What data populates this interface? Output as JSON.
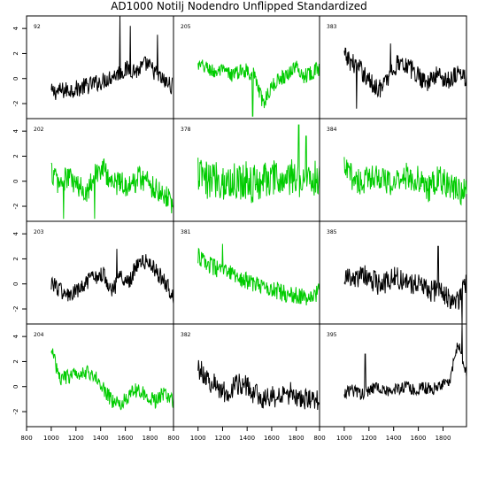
{
  "chart_data": {
    "type": "line",
    "title": "AD1000 Notilj Nodendro Unflipped Standardized",
    "x_ticks": [
      "800",
      "1000",
      "1200",
      "1400",
      "1600",
      "1800"
    ],
    "y_ticks": [
      "-2",
      "0",
      "2",
      "4"
    ],
    "xlim": [
      800,
      1990
    ],
    "ylim": [
      -3.2,
      5.0
    ],
    "colors": {
      "black": "#000000",
      "green": "#00cc00"
    },
    "panels": [
      {
        "label": "92",
        "color": "black",
        "start": 1000,
        "end": 1980,
        "base": [
          -1.1,
          -1.0,
          -0.9,
          -0.8,
          -0.6,
          -0.4,
          -0.2,
          0.2,
          0.5,
          0.8,
          0.6,
          1.2,
          0.5,
          -0.2,
          -0.6
        ],
        "noise": 0.7,
        "spikes": [
          [
            1555,
            5.0
          ],
          [
            1640,
            4.2
          ],
          [
            1860,
            3.5
          ]
        ]
      },
      {
        "label": "205",
        "color": "green",
        "start": 1000,
        "end": 1990,
        "base": [
          1.0,
          0.9,
          0.5,
          0.6,
          0.3,
          0.5,
          0.7,
          0.2,
          -2.0,
          -0.8,
          0.0,
          0.3,
          1.0,
          0.2,
          0.5,
          0.8
        ],
        "noise": 0.6,
        "spikes": [
          [
            1445,
            -3.0
          ]
        ]
      },
      {
        "label": "383",
        "color": "black",
        "start": 1000,
        "end": 1990,
        "base": [
          1.8,
          1.2,
          0.5,
          -0.5,
          -0.8,
          0.5,
          1.5,
          0.8,
          0.2,
          -0.3,
          0.4,
          -0.2,
          0.5,
          0.0
        ],
        "noise": 0.8,
        "spikes": [
          [
            1375,
            2.8
          ],
          [
            1100,
            -2.4
          ]
        ]
      },
      {
        "label": "202",
        "color": "green",
        "start": 1000,
        "end": 1990,
        "base": [
          0.8,
          -0.3,
          0.4,
          -0.5,
          -0.8,
          0.6,
          1.0,
          -0.2,
          0.0,
          -0.5,
          0.4,
          0.0,
          -0.6,
          -1.0,
          -1.8
        ],
        "noise": 1.0,
        "spikes": [
          [
            1100,
            -3.0
          ],
          [
            1350,
            -3.0
          ]
        ]
      },
      {
        "label": "378",
        "color": "green",
        "start": 1000,
        "end": 1990,
        "base": [
          0.6,
          -0.1,
          0.3,
          -0.2,
          0.0,
          0.2,
          -0.3,
          0.3,
          0.1,
          0.0,
          0.2,
          0.1,
          0.3,
          0.0
        ],
        "noise": 1.6,
        "spikes": [
          [
            1820,
            4.5
          ],
          [
            1880,
            3.6
          ]
        ]
      },
      {
        "label": "384",
        "color": "green",
        "start": 1000,
        "end": 1990,
        "base": [
          0.9,
          0.3,
          -0.2,
          0.6,
          0.2,
          -0.4,
          0.5,
          0.3,
          0.1,
          -0.6,
          0.2,
          -0.3,
          -0.6,
          -1.0
        ],
        "noise": 1.1,
        "spikes": []
      },
      {
        "label": "203",
        "color": "black",
        "start": 1000,
        "end": 1990,
        "base": [
          0.2,
          -0.5,
          -1.0,
          -0.6,
          0.0,
          0.6,
          0.8,
          -0.5,
          0.6,
          0.3,
          1.8,
          1.7,
          1.0,
          0.3,
          -1.0
        ],
        "noise": 0.7,
        "spikes": [
          [
            1530,
            2.8
          ]
        ]
      },
      {
        "label": "381",
        "color": "green",
        "start": 1000,
        "end": 1990,
        "base": [
          2.2,
          1.6,
          1.2,
          0.9,
          0.7,
          0.3,
          0.0,
          -0.2,
          -0.4,
          -0.7,
          -0.9,
          -1.0,
          -1.3,
          -0.5
        ],
        "noise": 0.7,
        "spikes": [
          [
            1200,
            3.2
          ]
        ]
      },
      {
        "label": "385",
        "color": "black",
        "start": 1000,
        "end": 1990,
        "base": [
          0.6,
          0.2,
          0.7,
          0.3,
          -0.2,
          0.5,
          0.4,
          0.0,
          0.2,
          -0.6,
          -0.5,
          -1.0,
          -1.5,
          0.2
        ],
        "noise": 0.9,
        "spikes": [
          [
            1760,
            3.0
          ],
          [
            1955,
            -3.2
          ]
        ]
      },
      {
        "label": "204",
        "color": "green",
        "start": 1000,
        "end": 1990,
        "base": [
          3.0,
          0.6,
          0.8,
          1.1,
          1.2,
          0.8,
          -0.2,
          -1.2,
          -1.4,
          -0.6,
          -0.2,
          -0.8,
          -1.2,
          -0.4,
          -1.3
        ],
        "noise": 0.6,
        "spikes": []
      },
      {
        "label": "382",
        "color": "black",
        "start": 1000,
        "end": 1990,
        "base": [
          1.6,
          0.6,
          0.0,
          -0.5,
          0.1,
          0.3,
          -0.6,
          -1.0,
          -0.8,
          -0.9,
          -0.5,
          -1.0,
          -1.1,
          -1.2
        ],
        "noise": 0.9,
        "spikes": []
      },
      {
        "label": "395",
        "color": "black",
        "start": 1000,
        "end": 1990,
        "base": [
          -0.5,
          -0.3,
          -0.6,
          -0.2,
          0.0,
          -0.4,
          -0.2,
          0.0,
          -0.3,
          -0.1,
          -0.2,
          0.0,
          0.3,
          3.5,
          1.2
        ],
        "noise": 0.5,
        "spikes": [
          [
            1170,
            2.6
          ],
          [
            1955,
            5.0
          ]
        ]
      }
    ]
  }
}
